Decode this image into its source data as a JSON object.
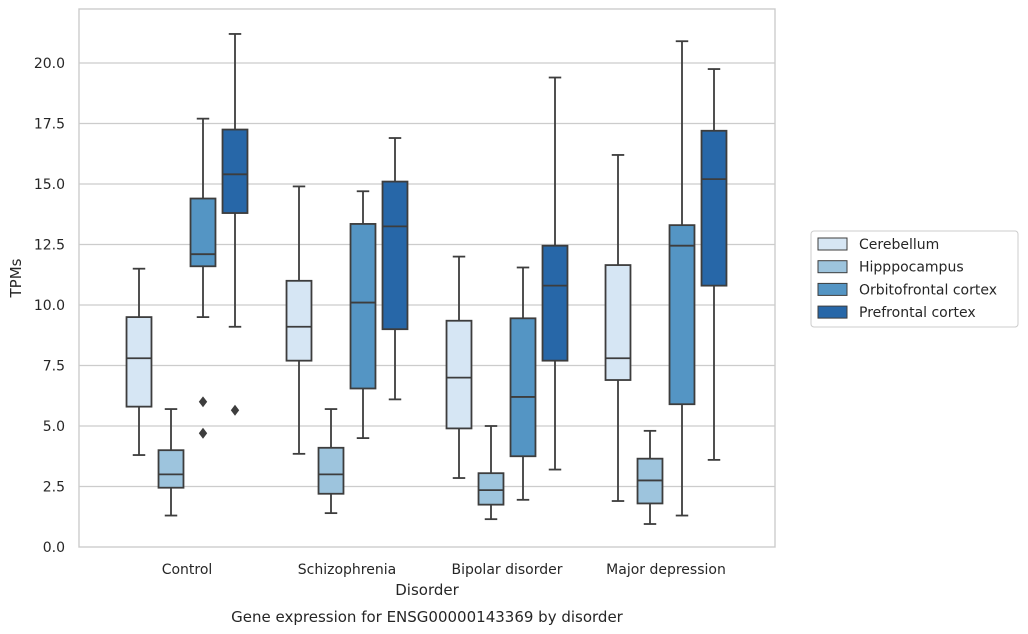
{
  "chart_data": {
    "type": "box",
    "caption": "Gene expression for ENSG00000143369 by disorder",
    "xlabel": "Disorder",
    "ylabel": "TPMs",
    "ylim": [
      0,
      22.3
    ],
    "yticks": [
      "0.0",
      "2.5",
      "5.0",
      "7.5",
      "10.0",
      "12.5",
      "15.0",
      "17.5",
      "20.0"
    ],
    "grid": "horizontal",
    "legend_position": "right",
    "categories": [
      "Control",
      "Schizophrenia",
      "Bipolar disorder",
      "Major depression"
    ],
    "series": [
      {
        "name": "Cerebellum",
        "color": "#d6e6f4",
        "boxes": [
          {
            "whislo": 3.8,
            "q1": 5.8,
            "med": 7.8,
            "q3": 9.5,
            "whishi": 11.5,
            "fliers": []
          },
          {
            "whislo": 3.85,
            "q1": 7.7,
            "med": 9.1,
            "q3": 11.0,
            "whishi": 14.9,
            "fliers": []
          },
          {
            "whislo": 2.85,
            "q1": 4.9,
            "med": 7.0,
            "q3": 9.35,
            "whishi": 12.0,
            "fliers": []
          },
          {
            "whislo": 1.9,
            "q1": 6.9,
            "med": 7.8,
            "q3": 11.65,
            "whishi": 16.2,
            "fliers": []
          }
        ]
      },
      {
        "name": "Hipppocampus",
        "color": "#9dc4dd",
        "boxes": [
          {
            "whislo": 1.3,
            "q1": 2.45,
            "med": 3.0,
            "q3": 4.0,
            "whishi": 5.7,
            "fliers": []
          },
          {
            "whislo": 1.4,
            "q1": 2.2,
            "med": 3.0,
            "q3": 4.1,
            "whishi": 5.7,
            "fliers": []
          },
          {
            "whislo": 1.15,
            "q1": 1.75,
            "med": 2.35,
            "q3": 3.05,
            "whishi": 5.0,
            "fliers": []
          },
          {
            "whislo": 0.95,
            "q1": 1.8,
            "med": 2.75,
            "q3": 3.65,
            "whishi": 4.8,
            "fliers": []
          }
        ]
      },
      {
        "name": "Orbitofrontal cortex",
        "color": "#5495c4",
        "boxes": [
          {
            "whislo": 9.5,
            "q1": 11.6,
            "med": 12.1,
            "q3": 14.4,
            "whishi": 17.7,
            "fliers": [
              6.0,
              4.7
            ]
          },
          {
            "whislo": 4.5,
            "q1": 6.55,
            "med": 10.1,
            "q3": 13.35,
            "whishi": 14.7,
            "fliers": []
          },
          {
            "whislo": 1.95,
            "q1": 3.75,
            "med": 6.2,
            "q3": 9.45,
            "whishi": 11.55,
            "fliers": []
          },
          {
            "whislo": 1.3,
            "q1": 5.9,
            "med": 12.45,
            "q3": 13.3,
            "whishi": 20.9,
            "fliers": []
          }
        ]
      },
      {
        "name": "Prefrontal cortex",
        "color": "#2767a8",
        "boxes": [
          {
            "whislo": 9.1,
            "q1": 13.8,
            "med": 15.4,
            "q3": 17.25,
            "whishi": 21.2,
            "fliers": [
              5.65
            ]
          },
          {
            "whislo": 6.1,
            "q1": 9.0,
            "med": 13.25,
            "q3": 15.1,
            "whishi": 16.9,
            "fliers": []
          },
          {
            "whislo": 3.2,
            "q1": 7.7,
            "med": 10.8,
            "q3": 12.45,
            "whishi": 19.4,
            "fliers": []
          },
          {
            "whislo": 3.6,
            "q1": 10.8,
            "med": 15.2,
            "q3": 17.2,
            "whishi": 19.75,
            "fliers": []
          }
        ]
      }
    ]
  }
}
